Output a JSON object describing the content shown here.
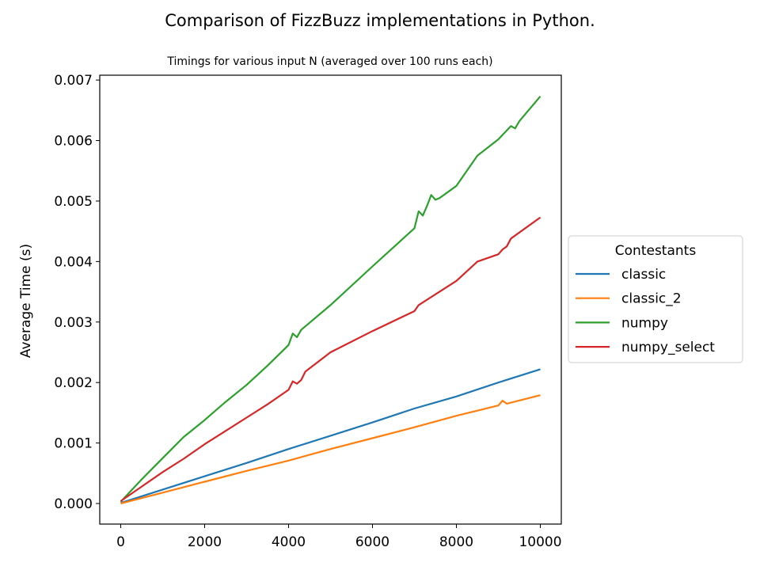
{
  "chart_data": {
    "type": "line",
    "title": "Comparison of FizzBuzz implementations in Python.",
    "subtitle": "Timings for various input N (averaged over 100 runs each)",
    "xlabel": "",
    "ylabel": "Average Time (s)",
    "xlim": [
      -500,
      10500
    ],
    "ylim": [
      -0.00034,
      0.00708
    ],
    "xticks": [
      0,
      2000,
      4000,
      6000,
      8000,
      10000
    ],
    "xtick_labels": [
      "0",
      "2000",
      "4000",
      "6000",
      "8000",
      "10000"
    ],
    "yticks": [
      0,
      0.001,
      0.002,
      0.003,
      0.004,
      0.005,
      0.006,
      0.007
    ],
    "ytick_labels": [
      "0.000",
      "0.001",
      "0.002",
      "0.003",
      "0.004",
      "0.005",
      "0.006",
      "0.007"
    ],
    "grid": false,
    "legend": {
      "title": "Contestants",
      "placement": "outside-right"
    },
    "series": [
      {
        "name": "classic",
        "color": "#1f77b4",
        "x": [
          0,
          1000,
          2000,
          3000,
          4000,
          5000,
          6000,
          7000,
          8000,
          9000,
          10000
        ],
        "y": [
          1e-05,
          0.00023,
          0.00045,
          0.00067,
          0.0009,
          0.00112,
          0.00134,
          0.00157,
          0.00177,
          0.002,
          0.00222
        ]
      },
      {
        "name": "classic_2",
        "color": "#ff7f0e",
        "x": [
          0,
          1000,
          2000,
          3000,
          4000,
          5000,
          6000,
          7000,
          8000,
          9000,
          9100,
          9200,
          10000
        ],
        "y": [
          0.0,
          0.00018,
          0.00036,
          0.00054,
          0.00071,
          0.0009,
          0.00108,
          0.00126,
          0.00145,
          0.00162,
          0.0017,
          0.00165,
          0.00179
        ]
      },
      {
        "name": "numpy",
        "color": "#2ca02c",
        "x": [
          0,
          500,
          1000,
          1500,
          2000,
          2500,
          3000,
          3500,
          4000,
          4100,
          4200,
          4300,
          5000,
          6000,
          7000,
          7100,
          7200,
          7300,
          7400,
          7500,
          7600,
          8000,
          8500,
          9000,
          9300,
          9400,
          9500,
          10000
        ],
        "y": [
          3e-05,
          0.0004,
          0.00075,
          0.0011,
          0.00138,
          0.00168,
          0.00196,
          0.00228,
          0.00262,
          0.00281,
          0.00275,
          0.00287,
          0.00328,
          0.00392,
          0.00455,
          0.00483,
          0.00476,
          0.00492,
          0.0051,
          0.00502,
          0.00505,
          0.00525,
          0.00575,
          0.00602,
          0.00624,
          0.0062,
          0.00632,
          0.00673
        ]
      },
      {
        "name": "numpy_select",
        "color": "#d62728",
        "x": [
          0,
          500,
          1000,
          1500,
          2000,
          2500,
          3000,
          3500,
          4000,
          4100,
          4200,
          4300,
          4400,
          5000,
          6000,
          7000,
          7100,
          8000,
          8500,
          9000,
          9100,
          9200,
          9300,
          10000
        ],
        "y": [
          4e-05,
          0.00028,
          0.00052,
          0.00074,
          0.00098,
          0.0012,
          0.00142,
          0.00164,
          0.00188,
          0.00202,
          0.00198,
          0.00204,
          0.00218,
          0.0025,
          0.00285,
          0.00318,
          0.00328,
          0.00368,
          0.004,
          0.00412,
          0.0042,
          0.00425,
          0.00438,
          0.00473
        ]
      }
    ]
  }
}
